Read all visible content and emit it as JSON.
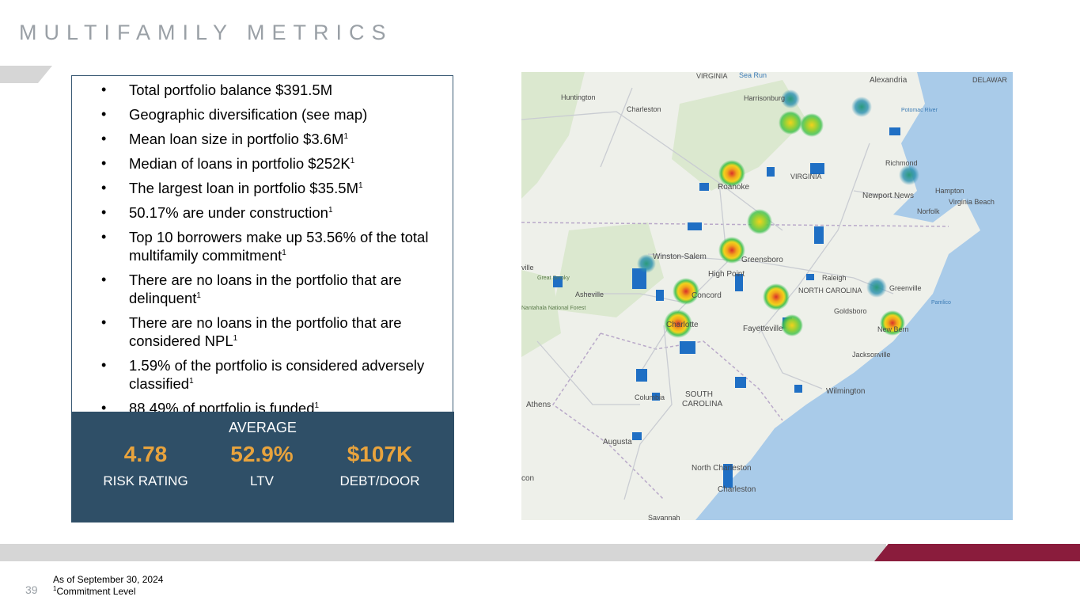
{
  "page": {
    "title": "MULTIFAMILY METRICS",
    "page_number": "39"
  },
  "bullets": [
    {
      "text": "Total portfolio balance $391.5M",
      "sup": ""
    },
    {
      "text": "Geographic diversification (see map)",
      "sup": ""
    },
    {
      "text": "Mean loan size in portfolio $3.6M",
      "sup": "1"
    },
    {
      "text": "Median of loans in portfolio $252K",
      "sup": "1"
    },
    {
      "text": "The largest loan in portfolio $35.5M",
      "sup": "1"
    },
    {
      "text": "50.17% are under construction",
      "sup": "1"
    },
    {
      "text": "Top 10 borrowers make up 53.56% of the total multifamily commitment",
      "sup": "1"
    },
    {
      "text": "There are no loans in the portfolio that are delinquent",
      "sup": "1"
    },
    {
      "text": "There are no loans in the portfolio that are considered NPL",
      "sup": "1"
    },
    {
      "text": "1.59% of the portfolio is considered adversely classified",
      "sup": "1"
    },
    {
      "text": "88.49% of portfolio is funded",
      "sup": "1"
    }
  ],
  "bullet_glyph": "•",
  "stats": {
    "heading": "AVERAGE",
    "items": [
      {
        "value": "4.78",
        "label": "RISK RATING"
      },
      {
        "value": "52.9%",
        "label": "LTV"
      },
      {
        "value": "$107K",
        "label": "DEBT/DOOR"
      }
    ]
  },
  "map": {
    "labels": {
      "virginia_top": "VIRGINIA",
      "sea_run": "Sea Run",
      "alexandria": "Alexandria",
      "delaware": "DELAWAR",
      "huntington": "Huntington",
      "charleston_wv": "Charleston",
      "harrisonburg": "Harrisonburg",
      "potomac": "Potomac River",
      "richmond": "Richmond",
      "roanoke": "Roanoke",
      "virginia_mid": "VIRGINIA",
      "newport_news": "Newport News",
      "hampton": "Hampton",
      "virginia_beach": "Virginia Beach",
      "norfolk": "Norfolk",
      "winston_salem": "Winston-Salem",
      "greensboro": "Greensboro",
      "high_point": "High Point",
      "raleigh": "Raleigh",
      "nc": "NORTH CAROLINA",
      "greenville": "Greenville",
      "pamlico": "Pamlico",
      "asheville": "Asheville",
      "concord": "Concord",
      "charlotte": "Charlotte",
      "fayetteville": "Fayetteville",
      "goldsboro": "Goldsboro",
      "new_bern": "New Bern",
      "jacksonville": "Jacksonville",
      "wilmington": "Wilmington",
      "athens": "Athens",
      "columbia": "Columbia",
      "sc": "SOUTH",
      "sc2": "CAROLINA",
      "augusta": "Augusta",
      "north_charleston": "North Charleston",
      "charleston_sc": "Charleston",
      "savannah": "Savannah",
      "ville": "ville",
      "nantahala": "Nantahala National Forest",
      "great_smoky": "Great Smoky",
      "con": "con"
    },
    "colors": {
      "water": "#a9cbe9",
      "land": "#eef0ea",
      "forest": "#dbe8cf",
      "heat_core": "#d9302a",
      "heat_mid": "#f2d21c",
      "heat_outer": "#3cc04a",
      "low_density": "#1f6fc4"
    }
  },
  "colors": {
    "title": "#9aa0a6",
    "panel_border": "#3a5a74",
    "stats_bg": "#2f4f67",
    "stats_value": "#e8a33d",
    "footer_gray": "#d6d6d6",
    "footer_accent": "#8a1c3c"
  },
  "footnote": {
    "date": "As of September 30, 2024",
    "sup": "1",
    "commitment": "Commitment Level"
  }
}
